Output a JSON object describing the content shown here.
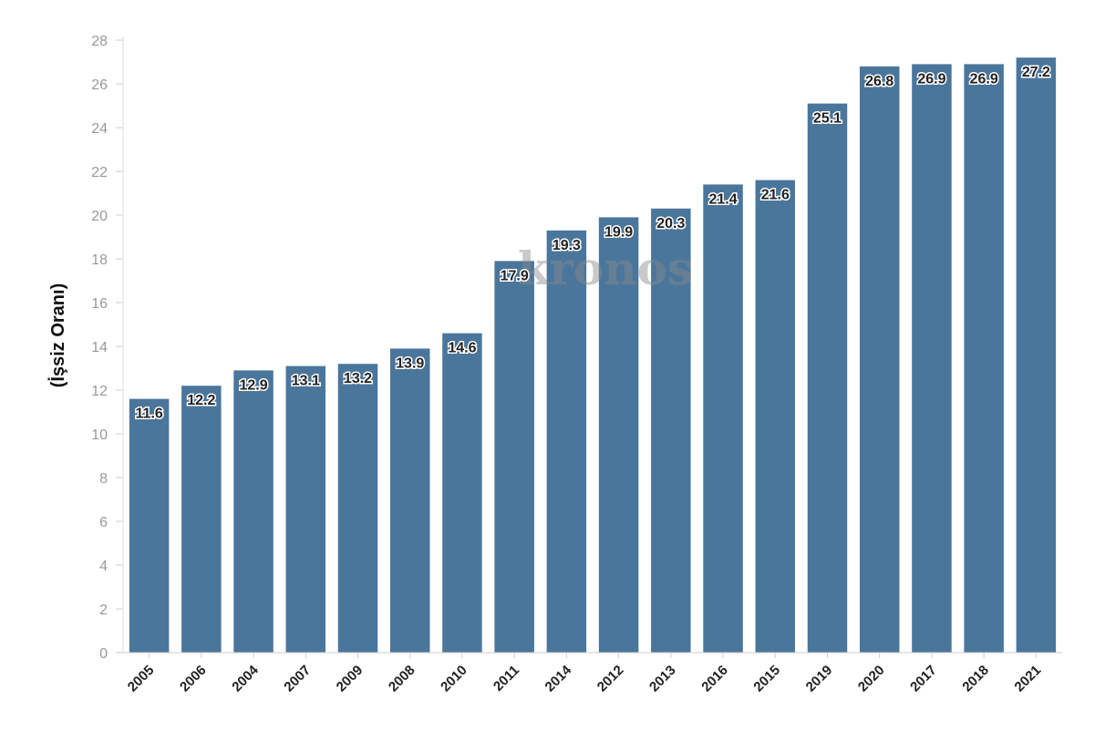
{
  "chart_data": {
    "type": "bar",
    "title": "",
    "xlabel": "",
    "ylabel": "(İşsiz Oranı)",
    "categories": [
      "2005",
      "2006",
      "2004",
      "2007",
      "2009",
      "2008",
      "2010",
      "2011",
      "2014",
      "2012",
      "2013",
      "2016",
      "2015",
      "2019",
      "2020",
      "2017",
      "2018",
      "2021"
    ],
    "values": [
      11.6,
      12.2,
      12.9,
      13.1,
      13.2,
      13.9,
      14.6,
      17.9,
      19.3,
      19.9,
      20.3,
      21.4,
      21.6,
      25.1,
      26.8,
      26.9,
      26.9,
      27.2
    ],
    "data_labels": [
      "11.6",
      "12.2",
      "12.9",
      "13.1",
      "13.2",
      "13.9",
      "14.6",
      "17.9",
      "19.3",
      "19.9",
      "20.3",
      "21.4",
      "21.6",
      "25.1",
      "26.8",
      "26.9",
      "26.9",
      "27.2"
    ],
    "ylim": [
      0,
      28
    ],
    "yticks": [
      0,
      2,
      4,
      6,
      8,
      10,
      12,
      14,
      16,
      18,
      20,
      22,
      24,
      26,
      28
    ],
    "ytick_labels": [
      "0",
      "2",
      "4",
      "6",
      "8",
      "10",
      "12",
      "14",
      "16",
      "18",
      "20",
      "22",
      "24",
      "26",
      "28"
    ],
    "grid": false,
    "legend": "none",
    "bar_color": "#4a769c",
    "watermark": "kronos"
  }
}
